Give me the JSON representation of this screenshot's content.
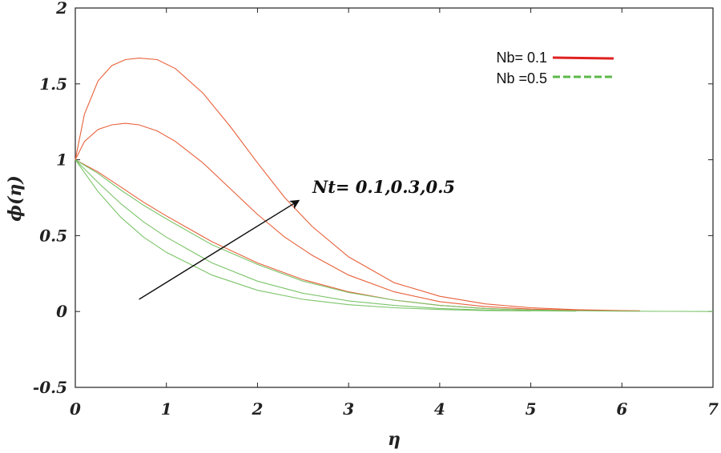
{
  "chart_data": {
    "type": "line",
    "xlabel": "η",
    "ylabel": "ϕ(η)",
    "xlim": [
      0,
      7
    ],
    "ylim": [
      -0.5,
      2
    ],
    "xticks": [
      "0",
      "1",
      "2",
      "3",
      "4",
      "5",
      "6",
      "7"
    ],
    "yticks": [
      "-0.5",
      "0",
      "0.5",
      "1",
      "1.5",
      "2"
    ],
    "grid": false,
    "legend_position": "top-right",
    "legend": [
      {
        "label": "Nb= 0.1",
        "color": "#e02020",
        "style": "solid"
      },
      {
        "label": "Nb =0.5",
        "color": "#5cb84a",
        "style": "dashed"
      }
    ],
    "annotation": {
      "text": "Nt= 0.1,0.3,0.5",
      "arrow_from": [
        0.7,
        0.08
      ],
      "arrow_to": [
        2.45,
        0.73
      ]
    },
    "series": [
      {
        "group": "Nb= 0.1",
        "color": "#e8603a",
        "x": [
          0,
          0.1,
          0.25,
          0.4,
          0.55,
          0.7,
          0.9,
          1.1,
          1.4,
          1.7,
          2.0,
          2.3,
          2.6,
          3.0,
          3.5,
          4.0,
          4.5,
          5.0,
          5.5,
          6.0,
          6.2
        ],
        "y": [
          1.0,
          1.3,
          1.52,
          1.62,
          1.66,
          1.67,
          1.66,
          1.6,
          1.44,
          1.22,
          0.98,
          0.75,
          0.56,
          0.36,
          0.19,
          0.1,
          0.05,
          0.025,
          0.012,
          0.006,
          0.005
        ]
      },
      {
        "group": "Nb= 0.1",
        "color": "#e8603a",
        "x": [
          0,
          0.1,
          0.25,
          0.4,
          0.55,
          0.7,
          0.9,
          1.1,
          1.4,
          1.7,
          2.0,
          2.3,
          2.6,
          3.0,
          3.5,
          4.0,
          4.5,
          5.0,
          5.5,
          6.0
        ],
        "y": [
          1.0,
          1.12,
          1.2,
          1.23,
          1.24,
          1.23,
          1.19,
          1.12,
          0.98,
          0.81,
          0.64,
          0.49,
          0.37,
          0.24,
          0.13,
          0.065,
          0.032,
          0.016,
          0.008,
          0.004
        ]
      },
      {
        "group": "Nb= 0.1",
        "color": "#e8603a",
        "x": [
          0,
          0.25,
          0.5,
          0.75,
          1.0,
          1.5,
          2.0,
          2.5,
          3.0,
          3.5,
          4.0,
          4.5,
          5.0,
          5.5
        ],
        "y": [
          1.0,
          0.92,
          0.82,
          0.72,
          0.63,
          0.46,
          0.32,
          0.21,
          0.13,
          0.075,
          0.04,
          0.02,
          0.01,
          0.005
        ]
      },
      {
        "group": "Nb =0.5",
        "color": "#7cc46a",
        "x": [
          0,
          0.25,
          0.5,
          0.75,
          1.0,
          1.5,
          2.0,
          2.5,
          3.0,
          3.5,
          4.0,
          4.5,
          5.0,
          5.5,
          6.0,
          6.5,
          7.0
        ],
        "y": [
          1.0,
          0.91,
          0.8,
          0.7,
          0.61,
          0.44,
          0.31,
          0.2,
          0.125,
          0.075,
          0.04,
          0.02,
          0.01,
          0.005,
          0.002,
          0.001,
          0.0
        ]
      },
      {
        "group": "Nb =0.5",
        "color": "#7cc46a",
        "x": [
          0,
          0.25,
          0.5,
          0.75,
          1.0,
          1.5,
          2.0,
          2.5,
          3.0,
          3.5,
          4.0,
          4.5,
          5.0,
          5.5
        ],
        "y": [
          1.0,
          0.85,
          0.71,
          0.59,
          0.49,
          0.32,
          0.2,
          0.12,
          0.07,
          0.04,
          0.02,
          0.01,
          0.005,
          0.002
        ]
      },
      {
        "group": "Nb =0.5",
        "color": "#7cc46a",
        "x": [
          0,
          0.25,
          0.5,
          0.75,
          1.0,
          1.5,
          2.0,
          2.5,
          3.0,
          3.5,
          4.0,
          4.5,
          5.0
        ],
        "y": [
          1.0,
          0.79,
          0.62,
          0.49,
          0.39,
          0.24,
          0.14,
          0.08,
          0.045,
          0.025,
          0.013,
          0.006,
          0.003
        ]
      }
    ]
  }
}
